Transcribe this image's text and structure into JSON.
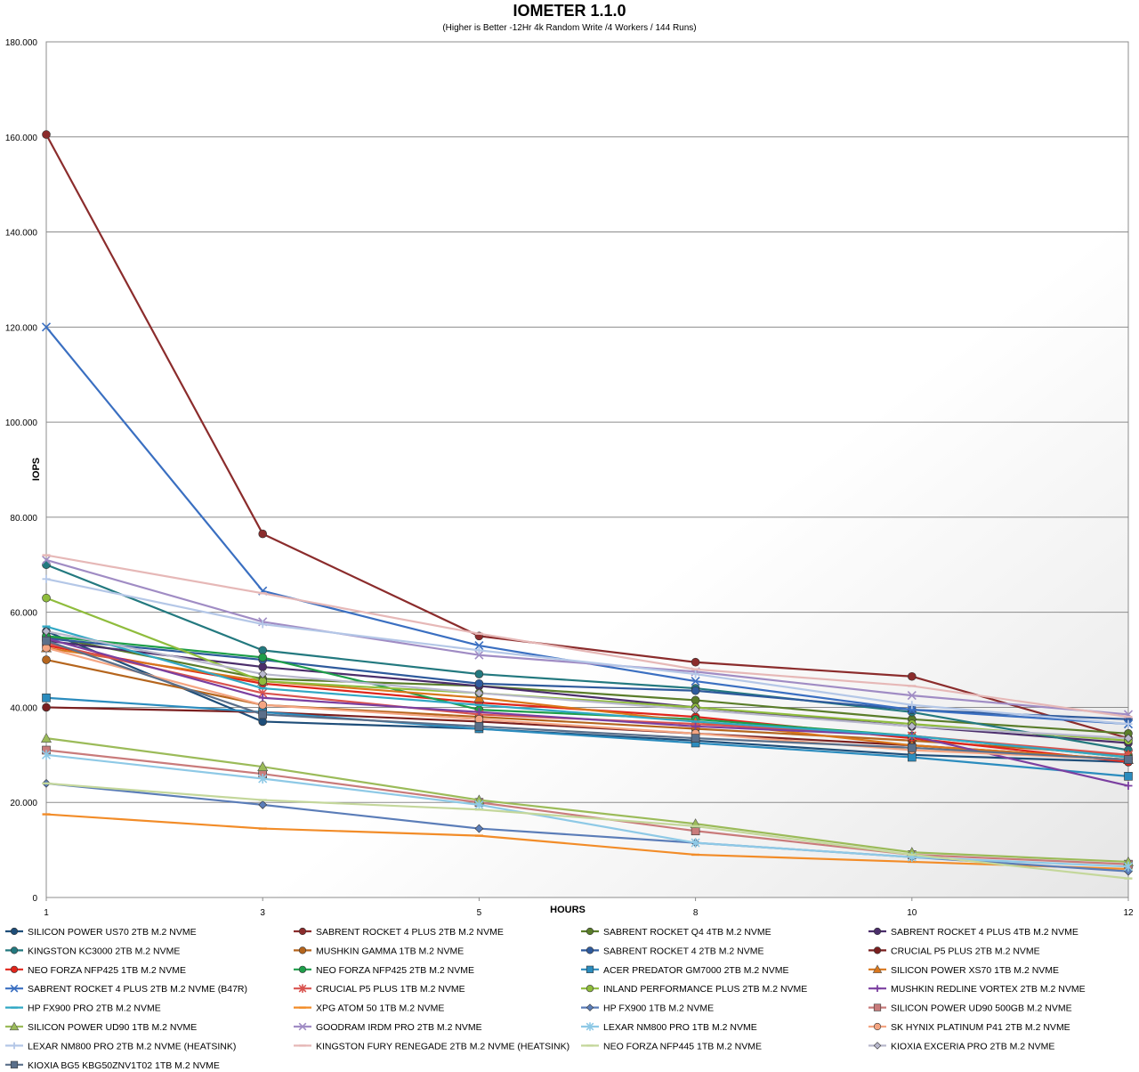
{
  "chart_data": {
    "type": "line",
    "title": "IOMETER 1.1.0",
    "subtitle": "(Higher is Better -12Hr 4k Random Write /4 Workers / 144 Runs)",
    "xlabel": "HOURS",
    "ylabel": "IOPS",
    "x": [
      "1",
      "3",
      "5",
      "8",
      "10",
      "12"
    ],
    "ylim": [
      0,
      180000
    ],
    "y_ticks": [
      "0",
      "20.000",
      "40.000",
      "60.000",
      "80.000",
      "100.000",
      "120.000",
      "140.000",
      "160.000",
      "180.000"
    ],
    "grid": true,
    "legend_position": "bottom",
    "series": [
      {
        "name": "SILICON POWER US70 2TB M.2 NVME",
        "color": "#1f4e79",
        "marker": "circle",
        "values": [
          56000,
          37000,
          35500,
          33000,
          30000,
          28500
        ]
      },
      {
        "name": "SABRENT ROCKET 4 PLUS 2TB M.2 NVME",
        "color": "#8b2c2c",
        "marker": "circle",
        "values": [
          160500,
          76500,
          55000,
          49500,
          46500,
          33500
        ]
      },
      {
        "name": "SABRENT ROCKET Q4 4TB M.2 NVME",
        "color": "#5a7d2a",
        "marker": "circle",
        "values": [
          55000,
          46000,
          44500,
          41500,
          37500,
          34500
        ]
      },
      {
        "name": "SABRENT ROCKET 4 PLUS 4TB M.2 NVME",
        "color": "#4b2e6b",
        "marker": "circle",
        "values": [
          54000,
          48500,
          44500,
          40000,
          36000,
          32500
        ]
      },
      {
        "name": "KINGSTON KC3000 2TB M.2 NVME",
        "color": "#23797f",
        "marker": "circle",
        "values": [
          70000,
          52000,
          47000,
          44000,
          39000,
          31000
        ]
      },
      {
        "name": "MUSHKIN GAMMA 1TB M.2 NVME",
        "color": "#b5651d",
        "marker": "circle",
        "values": [
          50000,
          40500,
          38000,
          35500,
          33000,
          30000
        ]
      },
      {
        "name": "SABRENT ROCKET 4 2TB M.2 NVME",
        "color": "#2e5a9c",
        "marker": "circle",
        "values": [
          54500,
          50000,
          45000,
          43500,
          39500,
          37500
        ]
      },
      {
        "name": "CRUCIAL P5 PLUS 2TB M.2 NVME",
        "color": "#7a1f1f",
        "marker": "circle",
        "values": [
          40000,
          39000,
          37000,
          34500,
          32000,
          29000
        ]
      },
      {
        "name": "NEO FORZA NFP425 1TB M.2 NVME",
        "color": "#e0251b",
        "marker": "circle",
        "values": [
          53000,
          45000,
          41000,
          38000,
          33500,
          28500
        ]
      },
      {
        "name": "NEO FORZA NFP425 2TB M.2 NVME",
        "color": "#1e9e4a",
        "marker": "circle",
        "values": [
          55000,
          50500,
          39500,
          37500,
          34000,
          29500
        ]
      },
      {
        "name": "ACER PREDATOR GM7000 2TB M.2 NVME",
        "color": "#2b8cbe",
        "marker": "square",
        "values": [
          42000,
          39000,
          35500,
          32500,
          29500,
          25500
        ]
      },
      {
        "name": "SILICON POWER XS70 1TB M.2 NVME",
        "color": "#d9771c",
        "marker": "triangle",
        "values": [
          52500,
          45500,
          42000,
          37000,
          32000,
          29000
        ]
      },
      {
        "name": "SABRENT ROCKET 4 PLUS 2TB M.2 NVME (B47R)",
        "color": "#3a6fc1",
        "marker": "x",
        "values": [
          120000,
          64500,
          53000,
          45500,
          39500,
          36500
        ]
      },
      {
        "name": "CRUCIAL P5 PLUS 1TB M.2 NVME",
        "color": "#d9534f",
        "marker": "star",
        "values": [
          53500,
          43000,
          38500,
          36500,
          34000,
          30000
        ]
      },
      {
        "name": "INLAND PERFORMANCE PLUS 2TB M.2 NVME",
        "color": "#8fbc3c",
        "marker": "circle",
        "values": [
          63000,
          45500,
          43000,
          40000,
          36500,
          33000
        ]
      },
      {
        "name": "MUSHKIN REDLINE VORTEX 2TB M.2 NVME",
        "color": "#7b3fa0",
        "marker": "plus",
        "values": [
          54500,
          42000,
          39000,
          36000,
          34000,
          23500
        ]
      },
      {
        "name": "HP FX900 PRO 2TB M.2 NVME",
        "color": "#31a8c4",
        "marker": "dash",
        "values": [
          57000,
          44000,
          40500,
          37000,
          34000,
          29500
        ]
      },
      {
        "name": "XPG ATOM 50 1TB M.2 NVME",
        "color": "#f28c28",
        "marker": "dash",
        "values": [
          17500,
          14500,
          13000,
          9000,
          7500,
          6000
        ]
      },
      {
        "name": "HP FX900 1TB M.2 NVME",
        "color": "#5b7db8",
        "marker": "diamond",
        "values": [
          24000,
          19500,
          14500,
          11500,
          8500,
          5500
        ]
      },
      {
        "name": "SILICON POWER UD90 500GB M.2 NVME",
        "color": "#c97b7b",
        "marker": "square",
        "values": [
          31000,
          26000,
          20000,
          14000,
          9000,
          7000
        ]
      },
      {
        "name": "SILICON POWER UD90 1TB M.2 NVME",
        "color": "#9bbb59",
        "marker": "triangle",
        "values": [
          33500,
          27500,
          20500,
          15500,
          9500,
          7500
        ]
      },
      {
        "name": "GOODRAM IRDM PRO 2TB M.2 NVME",
        "color": "#a08cc4",
        "marker": "x",
        "values": [
          71000,
          58000,
          51000,
          47500,
          42500,
          38500
        ]
      },
      {
        "name": "LEXAR NM800 PRO 1TB M.2 NVME",
        "color": "#8ec9e6",
        "marker": "star",
        "values": [
          30000,
          25000,
          19500,
          11500,
          8500,
          6500
        ]
      },
      {
        "name": "SK HYNIX PLATINUM P41 2TB M.2 NVME",
        "color": "#f4a582",
        "marker": "circle",
        "values": [
          52500,
          40500,
          37500,
          34500,
          31000,
          29000
        ]
      },
      {
        "name": "LEXAR NM800 PRO 2TB M.2 NVME (HEATSINK)",
        "color": "#b4c7e7",
        "marker": "plus",
        "values": [
          67000,
          57500,
          52000,
          47000,
          40500,
          36500
        ]
      },
      {
        "name": "KINGSTON FURY RENEGADE 2TB M.2 NVME (HEATSINK)",
        "color": "#e6b8b7",
        "marker": "dash",
        "values": [
          72000,
          64000,
          55500,
          48000,
          44500,
          38000
        ]
      },
      {
        "name": "NEO FORZA NFP445 1TB M.2 NVME",
        "color": "#c4d79b",
        "marker": "dash",
        "values": [
          24000,
          20500,
          18500,
          15000,
          9000,
          4000
        ]
      },
      {
        "name": "KIOXIA EXCERIA PRO 2TB M.2 NVME",
        "color": "#b8b8cc",
        "marker": "diamond",
        "values": [
          56000,
          47000,
          43000,
          39500,
          36000,
          33500
        ]
      },
      {
        "name": "KIOXIA BG5 KBG50ZNV1T02 1TB M.2 NVME",
        "color": "#5a6f8a",
        "marker": "square",
        "values": [
          54000,
          38500,
          36000,
          33500,
          31500,
          29000
        ]
      }
    ]
  }
}
